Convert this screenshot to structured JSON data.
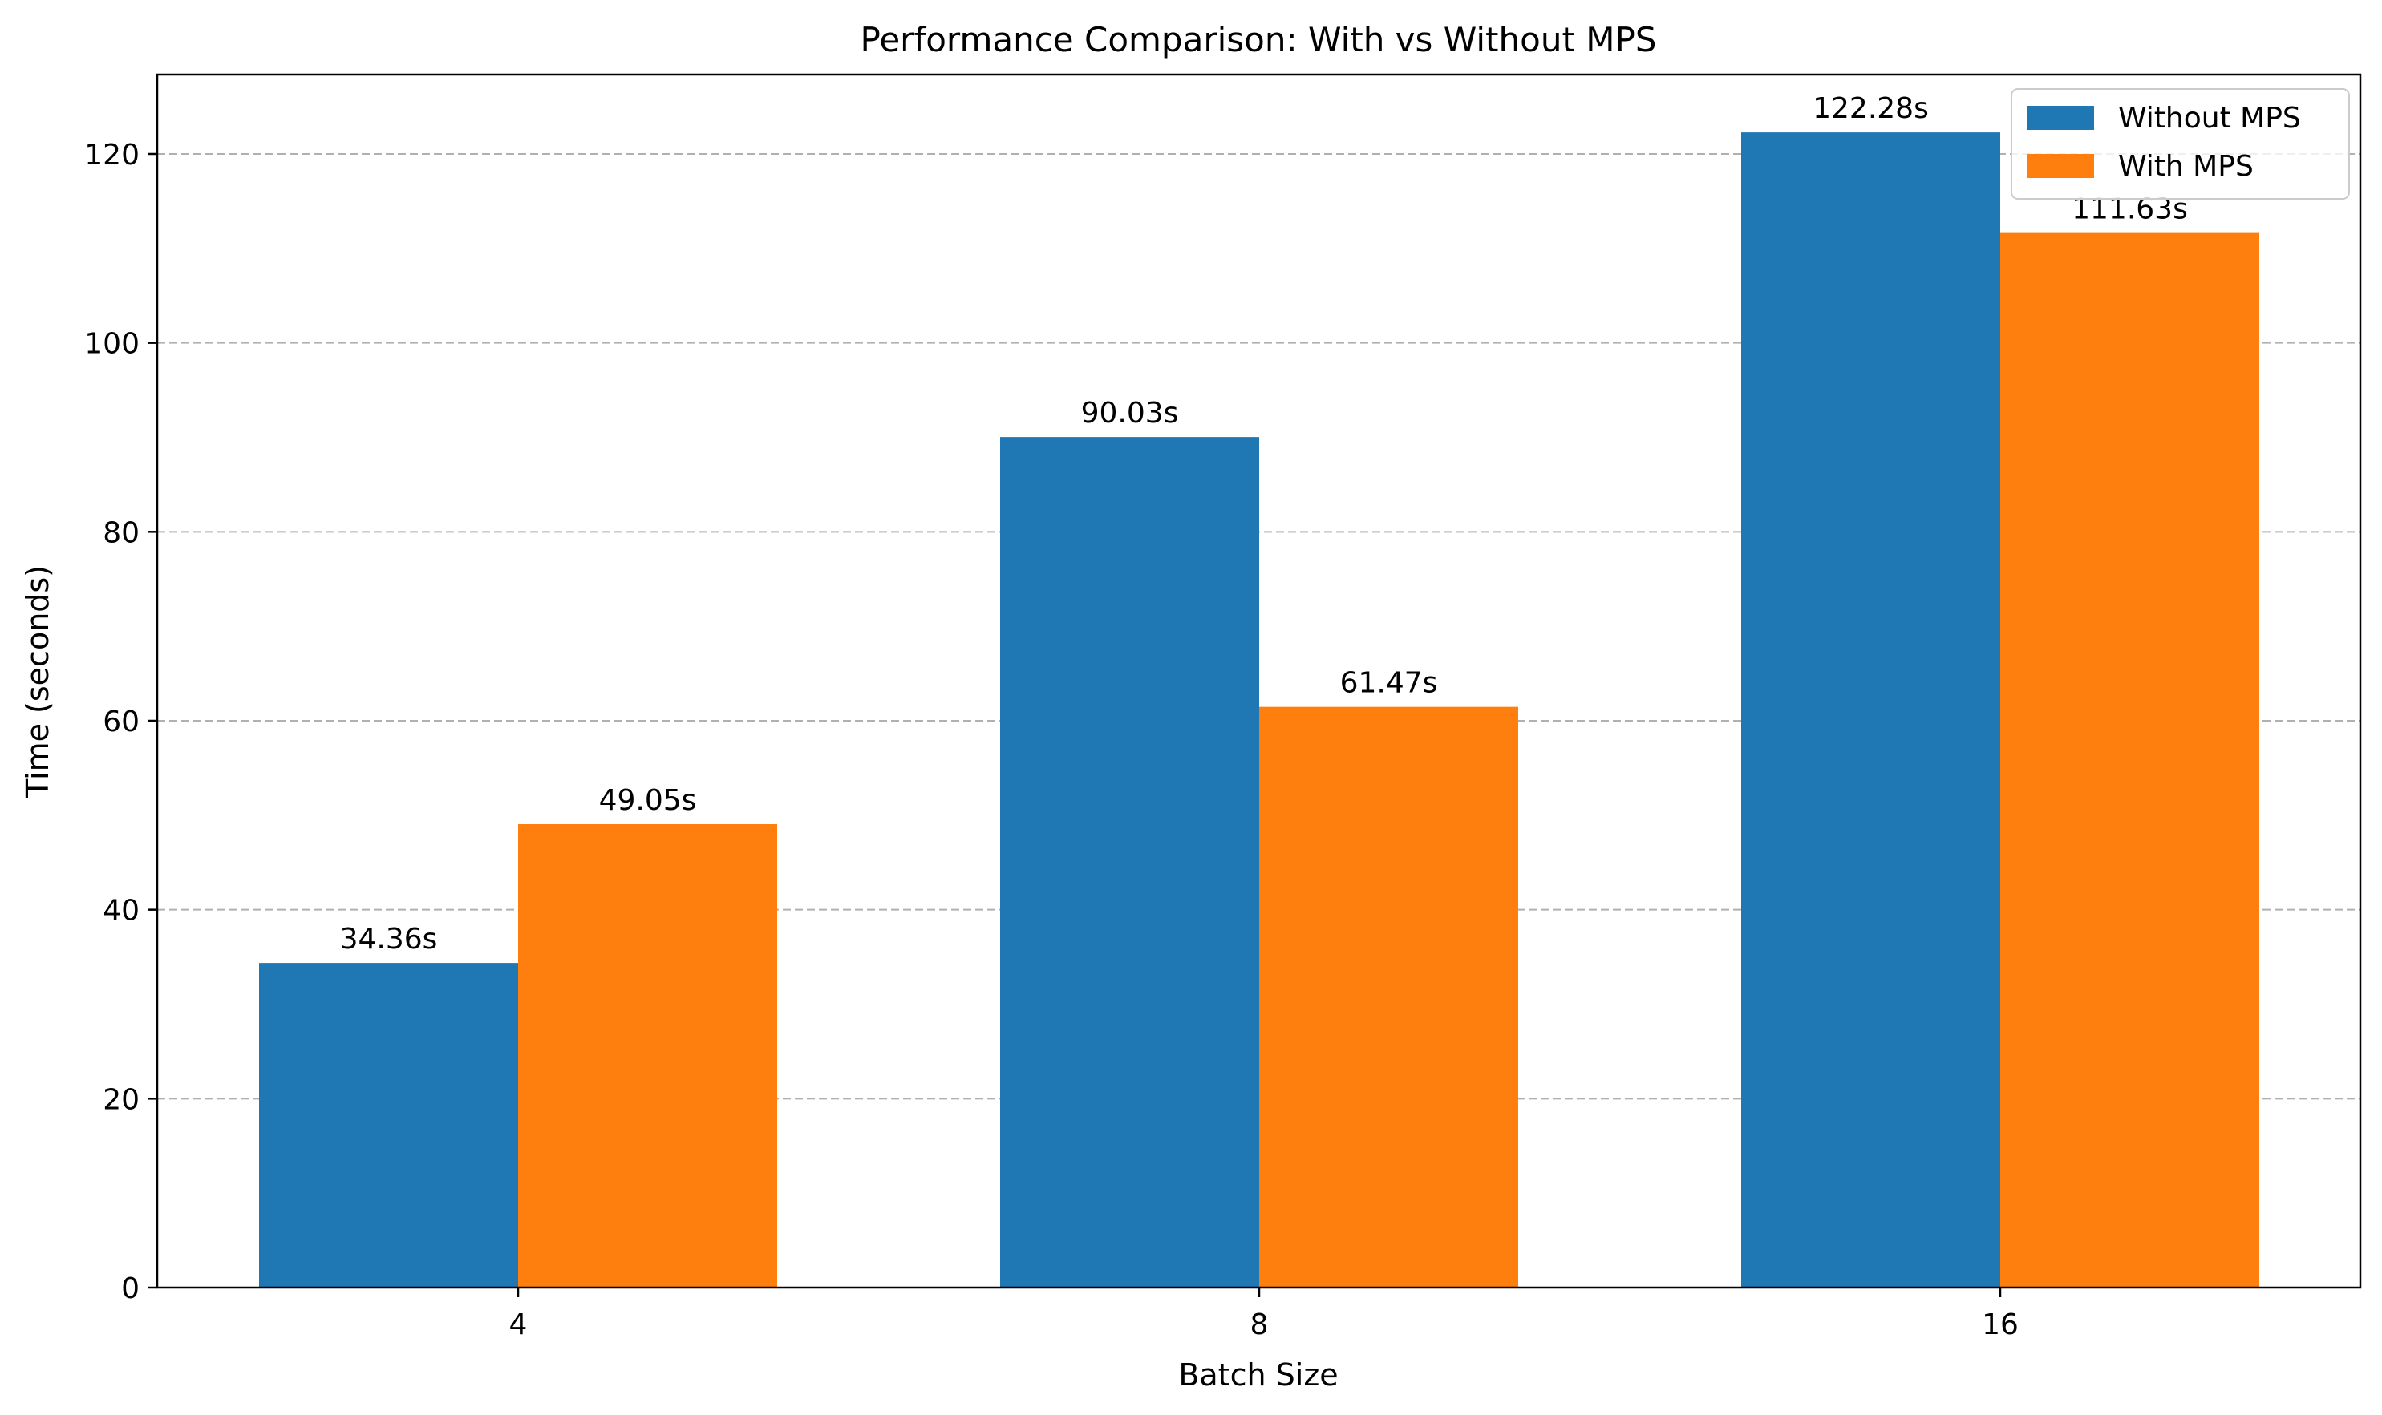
{
  "chart_data": {
    "type": "bar",
    "title": "Performance Comparison: With vs Without MPS",
    "xlabel": "Batch Size",
    "ylabel": "Time (seconds)",
    "categories": [
      "4",
      "8",
      "16"
    ],
    "series": [
      {
        "name": "Without MPS",
        "color": "#1f77b4",
        "values": [
          34.36,
          90.03,
          122.28
        ],
        "labels": [
          "34.36s",
          "90.03s",
          "122.28s"
        ]
      },
      {
        "name": "With MPS",
        "color": "#ff7f0e",
        "values": [
          49.05,
          61.47,
          111.63
        ],
        "labels": [
          "49.05s",
          "61.47s",
          "111.63s"
        ]
      }
    ],
    "ylim": [
      0,
      128.4
    ],
    "yticks": [
      0,
      20,
      40,
      60,
      80,
      100,
      120
    ],
    "grid": "y-dashed",
    "legend_position": "top-right"
  }
}
